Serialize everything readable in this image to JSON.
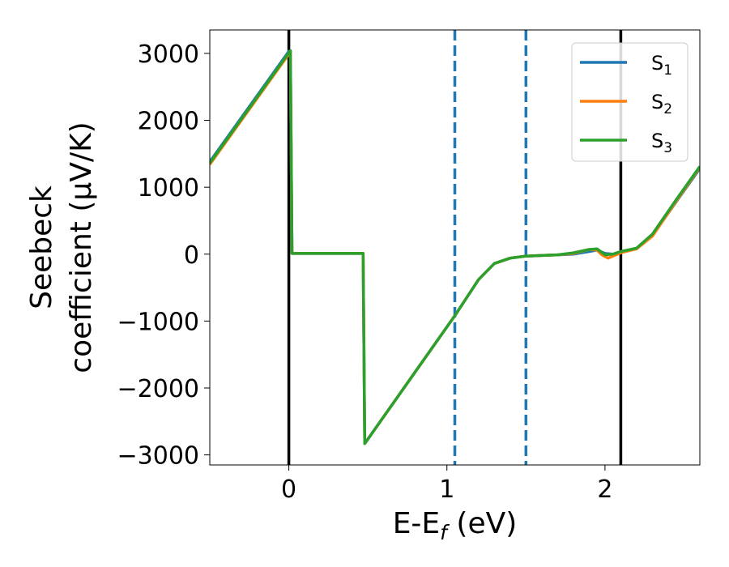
{
  "chart_data": {
    "type": "line",
    "xlabel": "E-E_f (eV)",
    "ylabel": "Seebeck coefficient (μV/K)",
    "ylabel_lines": [
      "Seebeck",
      "coefficient  (μV/K)"
    ],
    "xlim": [
      -0.5,
      2.6
    ],
    "ylim": [
      -3150,
      3350
    ],
    "x_ticks": [
      0,
      1,
      2
    ],
    "x_tick_labels": [
      "0",
      "1",
      "2"
    ],
    "y_ticks": [
      -3000,
      -2000,
      -1000,
      0,
      1000,
      2000,
      3000
    ],
    "y_tick_labels": [
      "−3000",
      "−2000",
      "−1000",
      "0",
      "1000",
      "2000",
      "3000"
    ],
    "grid": false,
    "legend_position": "top-right",
    "vertical_lines": [
      {
        "x": 0.0,
        "style": "solid",
        "color": "#000000"
      },
      {
        "x": 2.1,
        "style": "solid",
        "color": "#000000"
      },
      {
        "x": 1.05,
        "style": "dashed",
        "color": "#1f77b4"
      },
      {
        "x": 1.5,
        "style": "dashed",
        "color": "#1f77b4"
      }
    ],
    "series": [
      {
        "name": "S1",
        "legend_base": "S",
        "legend_sub": "1",
        "color": "#1f77b4",
        "points": [
          [
            -0.5,
            1380
          ],
          [
            0.0,
            3030
          ],
          [
            0.01,
            3040
          ],
          [
            0.02,
            10
          ],
          [
            0.47,
            10
          ],
          [
            0.48,
            -2830
          ],
          [
            1.05,
            -920
          ],
          [
            1.2,
            -380
          ],
          [
            1.3,
            -140
          ],
          [
            1.4,
            -60
          ],
          [
            1.5,
            -30
          ],
          [
            1.6,
            -20
          ],
          [
            1.7,
            -10
          ],
          [
            1.8,
            0
          ],
          [
            1.9,
            40
          ],
          [
            1.95,
            60
          ],
          [
            2.0,
            10
          ],
          [
            2.05,
            0
          ],
          [
            2.1,
            30
          ],
          [
            2.2,
            80
          ],
          [
            2.3,
            280
          ],
          [
            2.45,
            780
          ],
          [
            2.6,
            1280
          ]
        ]
      },
      {
        "name": "S2",
        "legend_base": "S",
        "legend_sub": "2",
        "color": "#ff7f0e",
        "points": [
          [
            -0.5,
            1340
          ],
          [
            0.0,
            2990
          ],
          [
            0.01,
            3020
          ],
          [
            0.02,
            10
          ],
          [
            0.47,
            10
          ],
          [
            0.48,
            -2830
          ],
          [
            1.05,
            -920
          ],
          [
            1.2,
            -380
          ],
          [
            1.3,
            -140
          ],
          [
            1.4,
            -60
          ],
          [
            1.5,
            -30
          ],
          [
            1.6,
            -20
          ],
          [
            1.7,
            -10
          ],
          [
            1.8,
            10
          ],
          [
            1.9,
            70
          ],
          [
            1.95,
            60
          ],
          [
            1.98,
            -10
          ],
          [
            2.02,
            -60
          ],
          [
            2.06,
            -20
          ],
          [
            2.1,
            20
          ],
          [
            2.2,
            80
          ],
          [
            2.3,
            270
          ],
          [
            2.45,
            790
          ],
          [
            2.6,
            1300
          ]
        ]
      },
      {
        "name": "S3",
        "legend_base": "S",
        "legend_sub": "3",
        "color": "#2ca02c",
        "points": [
          [
            -0.5,
            1360
          ],
          [
            0.0,
            3010
          ],
          [
            0.01,
            3040
          ],
          [
            0.02,
            10
          ],
          [
            0.47,
            10
          ],
          [
            0.48,
            -2830
          ],
          [
            1.05,
            -920
          ],
          [
            1.2,
            -380
          ],
          [
            1.3,
            -140
          ],
          [
            1.4,
            -60
          ],
          [
            1.5,
            -30
          ],
          [
            1.6,
            -20
          ],
          [
            1.7,
            -10
          ],
          [
            1.8,
            20
          ],
          [
            1.9,
            70
          ],
          [
            1.95,
            80
          ],
          [
            2.0,
            -10
          ],
          [
            2.05,
            0
          ],
          [
            2.1,
            40
          ],
          [
            2.2,
            90
          ],
          [
            2.3,
            300
          ],
          [
            2.45,
            810
          ],
          [
            2.6,
            1310
          ]
        ]
      }
    ]
  }
}
